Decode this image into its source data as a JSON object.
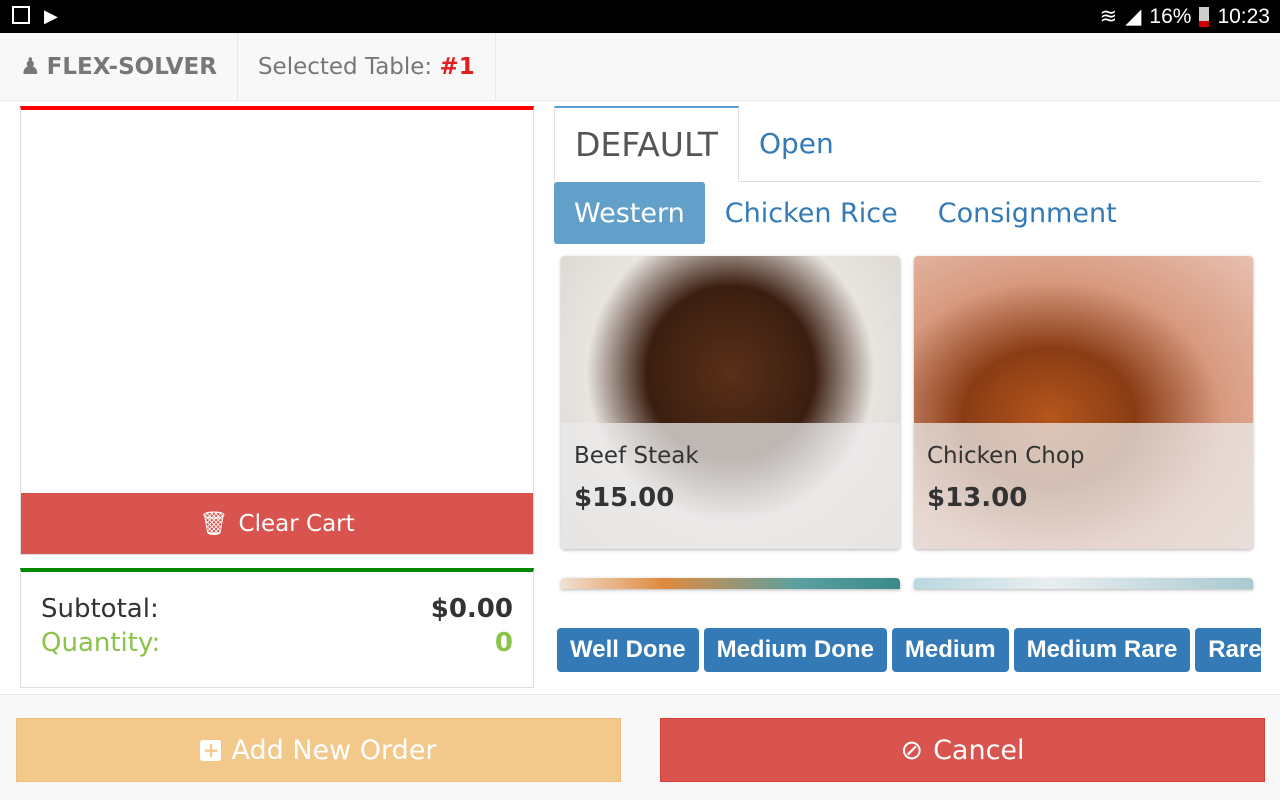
{
  "status_bar": {
    "battery": "16%",
    "time": "10:23",
    "icons": [
      "image-icon",
      "play-store-icon",
      "wifi-icon",
      "signal-icon",
      "battery-icon"
    ]
  },
  "nav": {
    "brand": "FLEX-SOLVER",
    "selected_table_label": "Selected Table:",
    "selected_table_value": "#1"
  },
  "cart": {
    "clear_label": "Clear Cart"
  },
  "summary": {
    "subtotal_label": "Subtotal:",
    "subtotal_value": "$0.00",
    "quantity_label": "Quantity:",
    "quantity_value": "0"
  },
  "tabs": [
    {
      "label": "DEFAULT",
      "active": true
    },
    {
      "label": "Open",
      "active": false
    }
  ],
  "categories": [
    {
      "label": "Western",
      "active": true
    },
    {
      "label": "Chicken Rice"
    },
    {
      "label": "Consignment"
    }
  ],
  "items": [
    {
      "name": "Beef Steak",
      "price": "$15.00"
    },
    {
      "name": "Chicken Chop",
      "price": "$13.00"
    }
  ],
  "modifiers": [
    "Well Done",
    "Medium Done",
    "Medium",
    "Medium Rare",
    "Rare"
  ],
  "footer": {
    "add_label": "Add New Order",
    "cancel_label": "Cancel"
  },
  "colors": {
    "danger": "#d9534f",
    "primary": "#337ab7",
    "warning": "#f3c98b",
    "success": "#8bc34a"
  }
}
